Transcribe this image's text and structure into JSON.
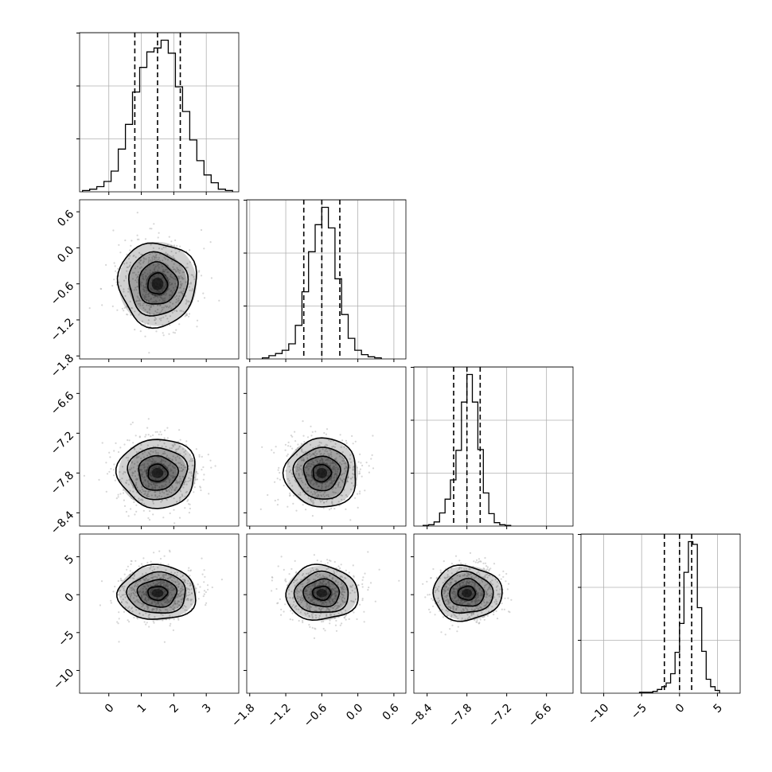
{
  "chart_data": {
    "type": "corner",
    "title": "",
    "grid": true,
    "parameters": [
      {
        "ticks": [
          0,
          1,
          2,
          3
        ],
        "tick_labels": [
          "0",
          "1",
          "2",
          "3"
        ],
        "range": [
          -0.9,
          4.0
        ],
        "quantiles": [
          0.8,
          1.5,
          2.2
        ]
      },
      {
        "ticks": [
          -1.8,
          -1.2,
          -0.6,
          0.0,
          0.6
        ],
        "tick_labels": [
          "−1.8",
          "−1.2",
          "−0.6",
          "0.0",
          "0.6"
        ],
        "range": [
          -1.85,
          0.8
        ],
        "quantiles": [
          -0.9,
          -0.6,
          -0.3
        ]
      },
      {
        "ticks": [
          -8.4,
          -7.8,
          -7.2,
          -6.6
        ],
        "tick_labels": [
          "−8.4",
          "−7.8",
          "−7.2",
          "−6.6"
        ],
        "range": [
          -8.6,
          -6.2
        ],
        "quantiles": [
          -8.0,
          -7.8,
          -7.6
        ]
      },
      {
        "ticks": [
          -10,
          -5,
          0,
          5
        ],
        "tick_labels": [
          "−10",
          "−5",
          "0",
          "5"
        ],
        "range": [
          -13.0,
          8.0
        ],
        "quantiles": [
          -2.0,
          0.0,
          1.6
        ]
      }
    ],
    "histograms": [
      {
        "counts": [
          1,
          2,
          4,
          8,
          16,
          33,
          52,
          77,
          96,
          108,
          111,
          117,
          107,
          81,
          62,
          40,
          24,
          13,
          7,
          2,
          1
        ]
      },
      {
        "counts": [
          1,
          3,
          5,
          8,
          14,
          31,
          62,
          99,
          124,
          140,
          121,
          74,
          41,
          19,
          8,
          4,
          2,
          1
        ]
      },
      {
        "counts": [
          1,
          2,
          6,
          19,
          39,
          67,
          110,
          180,
          220,
          180,
          111,
          48,
          18,
          5,
          2,
          1
        ]
      },
      {
        "counts": [
          1,
          1,
          1,
          2,
          4,
          7,
          11,
          21,
          44,
          75,
          130,
          163,
          160,
          92,
          45,
          15,
          7,
          3
        ]
      }
    ],
    "pairs": [
      {
        "x": 0,
        "y": 1,
        "center": [
          1.5,
          -0.6
        ],
        "spread": [
          0.6,
          0.35
        ]
      },
      {
        "x": 0,
        "y": 2,
        "center": [
          1.5,
          -7.8
        ],
        "spread": [
          0.6,
          0.26
        ]
      },
      {
        "x": 1,
        "y": 2,
        "center": [
          -0.6,
          -7.8
        ],
        "spread": [
          0.3,
          0.26
        ]
      },
      {
        "x": 0,
        "y": 3,
        "center": [
          1.5,
          0.2
        ],
        "spread": [
          0.6,
          1.8
        ]
      },
      {
        "x": 1,
        "y": 3,
        "center": [
          -0.6,
          0.2
        ],
        "spread": [
          0.3,
          1.8
        ]
      },
      {
        "x": 2,
        "y": 3,
        "center": [
          -7.8,
          0.2
        ],
        "spread": [
          0.26,
          1.8
        ]
      }
    ],
    "contour_levels": [
      0.5,
      1.0,
      1.5,
      2.0
    ]
  }
}
